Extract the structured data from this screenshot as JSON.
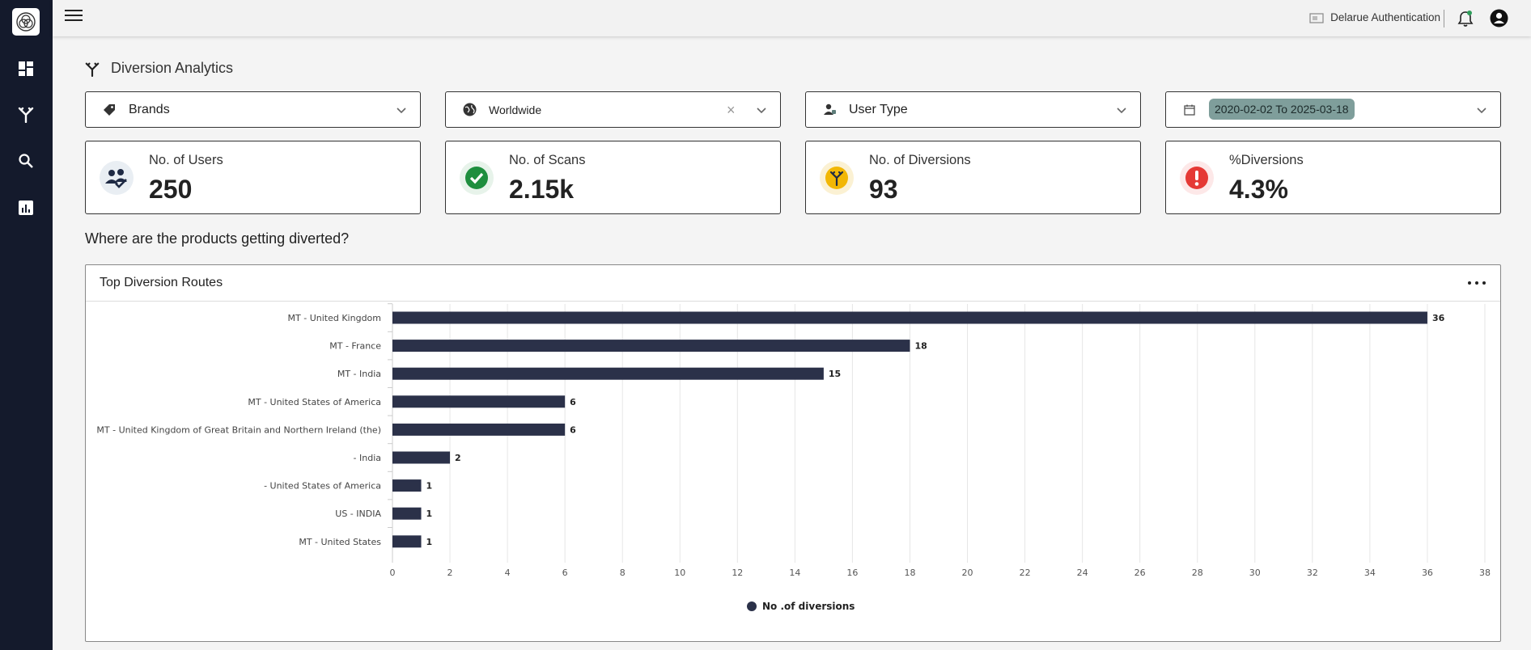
{
  "app": {
    "org_name": "Delarue Authentication"
  },
  "page": {
    "title": "Diversion Analytics",
    "section_question": "Where are the products getting diverted?"
  },
  "filters": {
    "brands": {
      "label": "Brands"
    },
    "region": {
      "label": "Worldwide"
    },
    "user_type": {
      "label": "User Type"
    },
    "date_range": {
      "label": "2020-02-02 To 2025-03-18"
    }
  },
  "kpis": [
    {
      "label": "No. of Users",
      "value": "250",
      "icon": "users-icon",
      "color": "#1f2a44"
    },
    {
      "label": "No. of Scans",
      "value": "2.15k",
      "icon": "check-circle-icon",
      "color": "#1e8e3e"
    },
    {
      "label": "No. of Diversions",
      "value": "93",
      "icon": "diversion-icon",
      "color": "#f2b705"
    },
    {
      "label": "%Diversions",
      "value": "4.3%",
      "icon": "alert-icon",
      "color": "#e53935"
    }
  ],
  "chart_panel": {
    "title": "Top Diversion Routes"
  },
  "chart_data": {
    "type": "bar",
    "orientation": "horizontal",
    "categories": [
      "MT - United Kingdom",
      "MT - France",
      "MT - India",
      "MT - United States of America",
      "MT - United Kingdom of Great Britain and Northern Ireland (the)",
      "- India",
      "- United States of America",
      "US - INDIA",
      "MT - United States"
    ],
    "series": [
      {
        "name": "No .of diversions",
        "values": [
          36,
          18,
          15,
          6,
          6,
          2,
          1,
          1,
          1
        ],
        "color": "#2b3149"
      }
    ],
    "xlim": [
      0,
      38
    ],
    "xticks": [
      0,
      2,
      4,
      6,
      8,
      10,
      12,
      14,
      16,
      18,
      20,
      22,
      24,
      26,
      28,
      30,
      32,
      34,
      36,
      38
    ],
    "grid": "vertical",
    "legend": "bottom-center"
  }
}
